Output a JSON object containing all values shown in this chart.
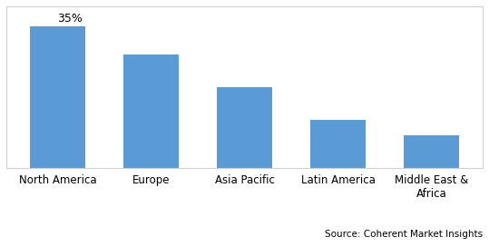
{
  "categories": [
    "North America",
    "Europe",
    "Asia Pacific",
    "Latin America",
    "Middle East &\nAfrica"
  ],
  "values": [
    35,
    28,
    20,
    12,
    8
  ],
  "bar_color": "#5b9bd5",
  "label_text": "35%",
  "label_bar_index": 0,
  "ylim": [
    0,
    40
  ],
  "source_text": "Source: Coherent Market Insights",
  "background_color": "#ffffff",
  "bar_width": 0.6,
  "label_fontsize": 9,
  "tick_fontsize": 8.5,
  "source_fontsize": 7.5,
  "border_color": "#d0d0d0",
  "border_linewidth": 0.8
}
